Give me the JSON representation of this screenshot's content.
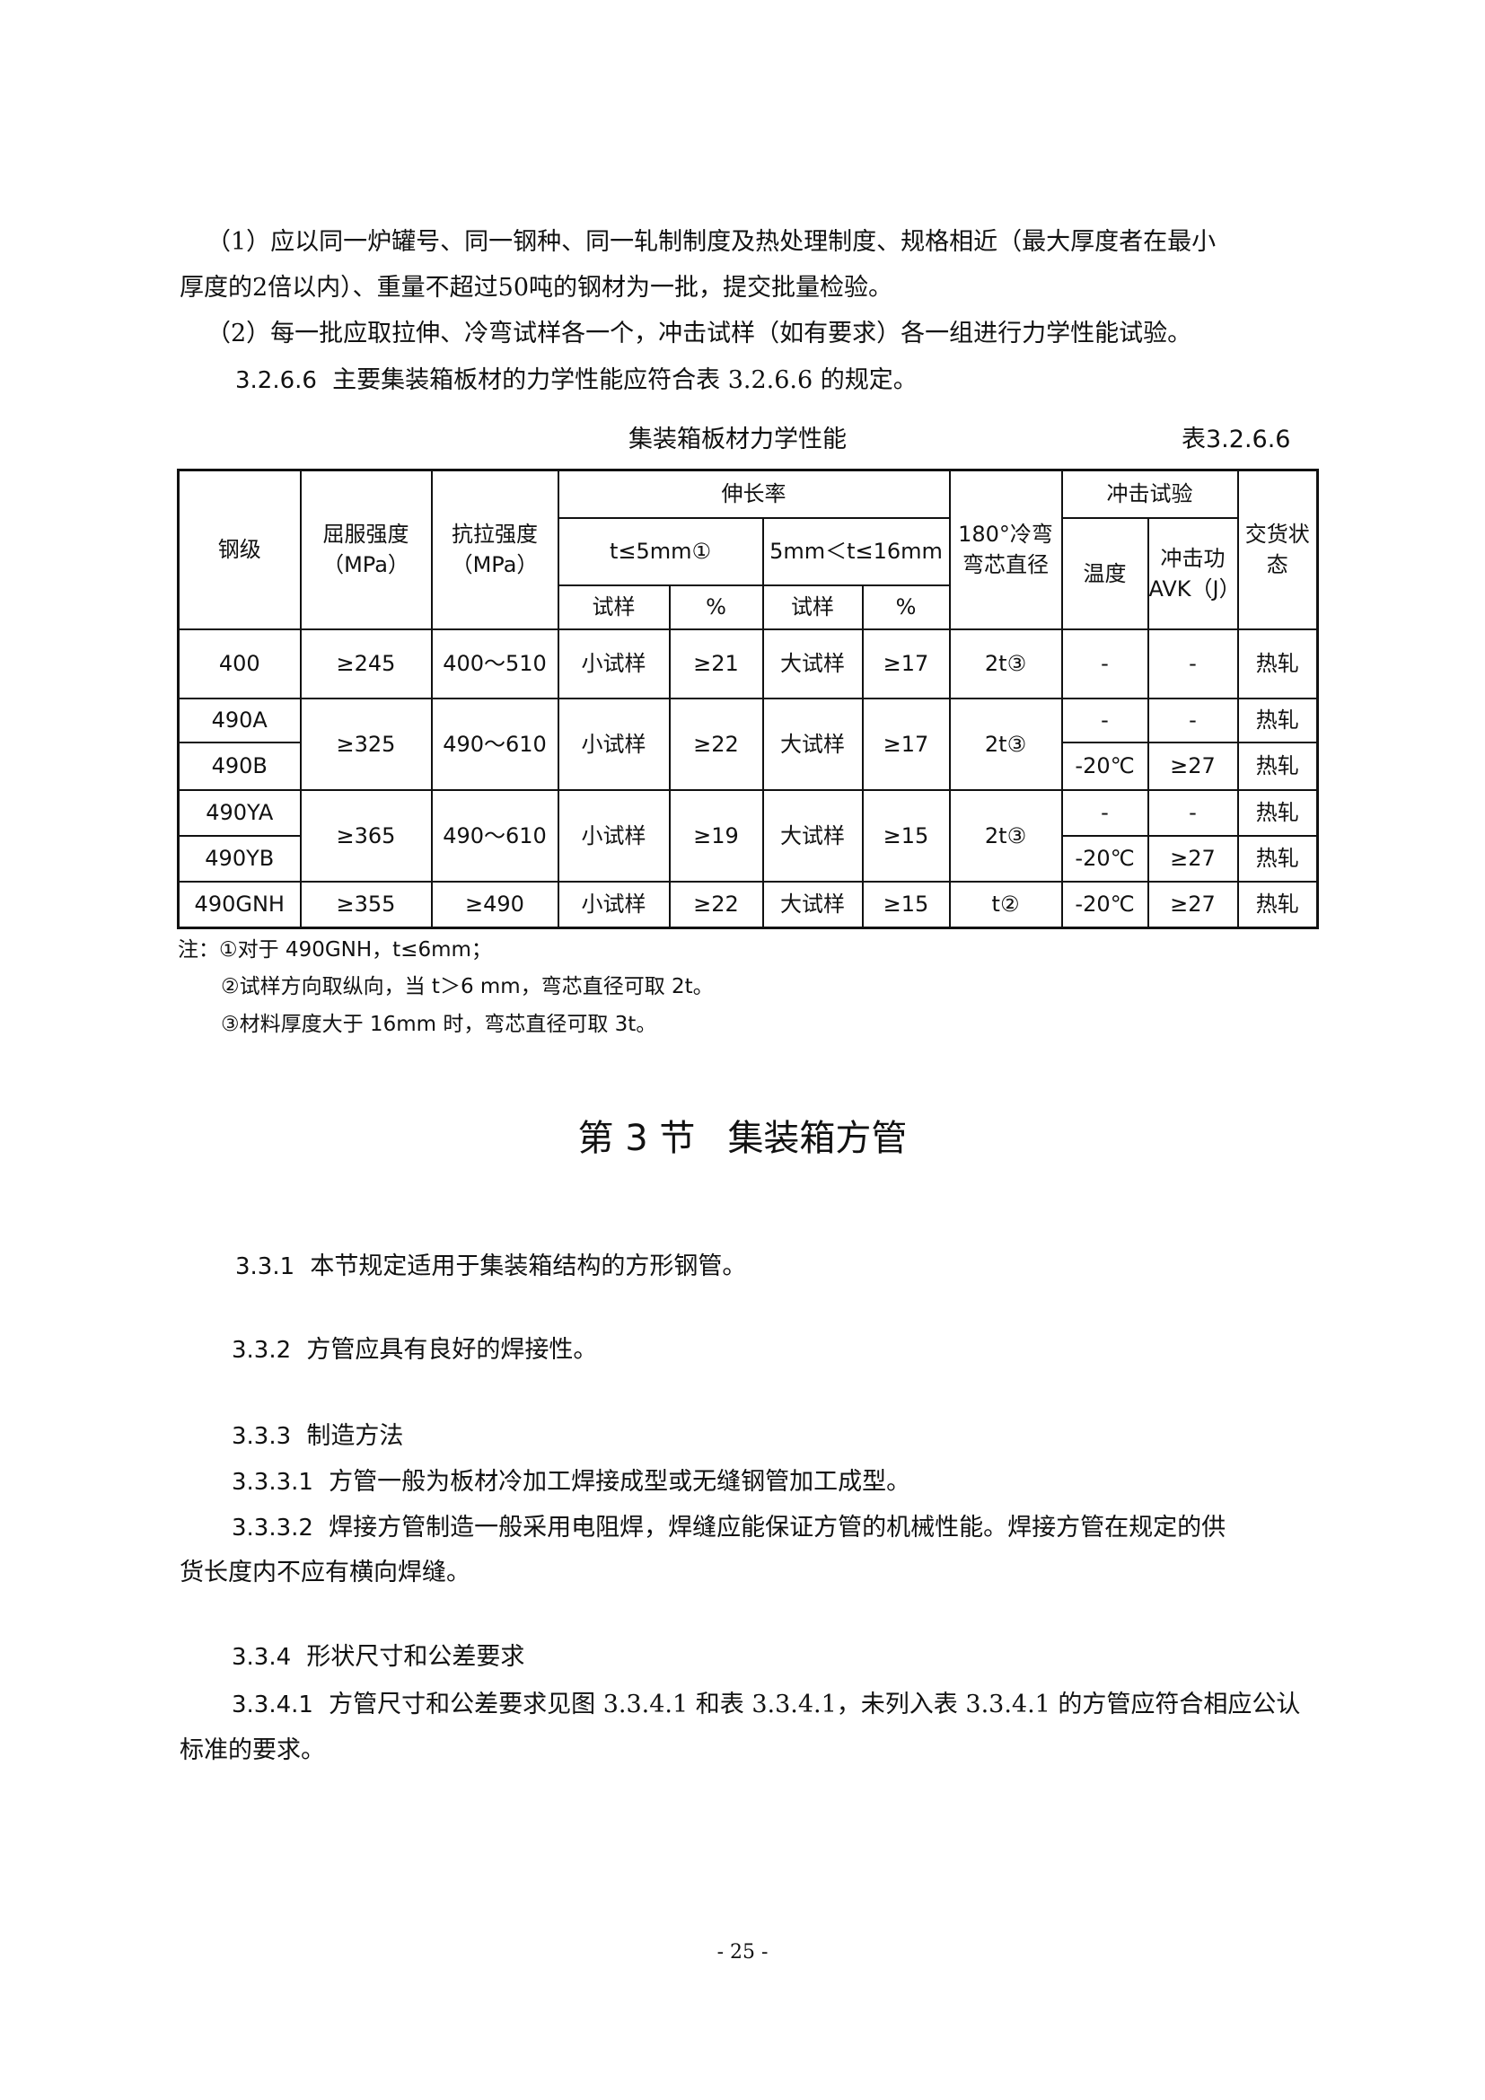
{
  "paragraphs_top": [
    "（1）应以同一炉罐号、同一钢种、同一轧制制度及热处理制度、规格相近（最大厚度者在最小",
    "厚度的2倍以内）、重量不超过50吨的钢材为一批，提交批量检验。",
    "（2）每一批应取拉伸、冷弯试样各一个，冲击试样（如有要求）各一组进行力学性能试验。"
  ],
  "clause_3266": {
    "number": "3.2.6.6",
    "text": "主要集装箱板材的力学性能应符合表 3.2.6.6 的规定。"
  },
  "table": {
    "caption": "集装箱板材力学性能",
    "number": "表3.2.6.6",
    "headers": {
      "grade": "钢级",
      "yield": "屈服强度（MPa）",
      "tensile": "抗拉强度（MPa）",
      "elongation": "伸长率",
      "t_le5": "t≤5mm①",
      "t_5_16": "5mm＜t≤16mm",
      "sample": "试样",
      "percent": "%",
      "bend": "180°冷弯弯芯直径",
      "impact": "冲击试验",
      "temp": "温度",
      "energy": "冲击功AVK（J）",
      "delivery": "交货状态"
    },
    "rows": [
      {
        "grade": "400",
        "yield": "≥245",
        "tensile": "400～510",
        "s1": "小试样",
        "p1": "≥21",
        "s2": "大试样",
        "p2": "≥17",
        "bend": "2t③",
        "temp": "-",
        "energy": "-",
        "delivery": "热轧"
      },
      {
        "grade": "490A",
        "yield": "≥325",
        "tensile": "490～610",
        "s1": "小试样",
        "p1": "≥22",
        "s2": "大试样",
        "p2": "≥17",
        "bend": "2t③",
        "temp": "-",
        "energy": "-",
        "delivery": "热轧"
      },
      {
        "grade": "490B",
        "temp": "-20℃",
        "energy": "≥27",
        "delivery": "热轧"
      },
      {
        "grade": "490YA",
        "yield": "≥365",
        "tensile": "490～610",
        "s1": "小试样",
        "p1": "≥19",
        "s2": "大试样",
        "p2": "≥15",
        "bend": "2t③",
        "temp": "-",
        "energy": "-",
        "delivery": "热轧"
      },
      {
        "grade": "490YB",
        "temp": "-20℃",
        "energy": "≥27",
        "delivery": "热轧"
      },
      {
        "grade": "490GNH",
        "yield": "≥355",
        "tensile": "≥490",
        "s1": "小试样",
        "p1": "≥22",
        "s2": "大试样",
        "p2": "≥15",
        "bend": "t②",
        "temp": "-20℃",
        "energy": "≥27",
        "delivery": "热轧"
      }
    ],
    "notes": [
      "注：①对于 490GNH，t≤6mm；",
      "②试样方向取纵向，当 t＞6 mm，弯芯直径可取 2t。",
      "③材料厚度大于 16mm 时，弯芯直径可取 3t。"
    ]
  },
  "section": {
    "number": "第 3 节",
    "title": "集装箱方管"
  },
  "clauses": [
    {
      "number": "3.3.1",
      "text": "本节规定适用于集装箱结构的方形钢管。"
    },
    {
      "number": "3.3.2",
      "text": "方管应具有良好的焊接性。"
    },
    {
      "number": "3.3.3",
      "text": "制造方法"
    },
    {
      "number": "3.3.3.1",
      "text": "方管一般为板材冷加工焊接成型或无缝钢管加工成型。"
    },
    {
      "number": "3.3.3.2",
      "text": "焊接方管制造一般采用电阻焊，焊缝应能保证方管的机械性能。焊接方管在规定的供",
      "cont": "货长度内不应有横向焊缝。"
    },
    {
      "number": "3.3.4",
      "text": "形状尺寸和公差要求"
    },
    {
      "number": "3.3.4.1",
      "text": "方管尺寸和公差要求见图 3.3.4.1 和表 3.3.4.1，未列入表 3.3.4.1 的方管应符合相应公认",
      "cont": "标准的要求。"
    }
  ],
  "page_number": "- 25 -"
}
